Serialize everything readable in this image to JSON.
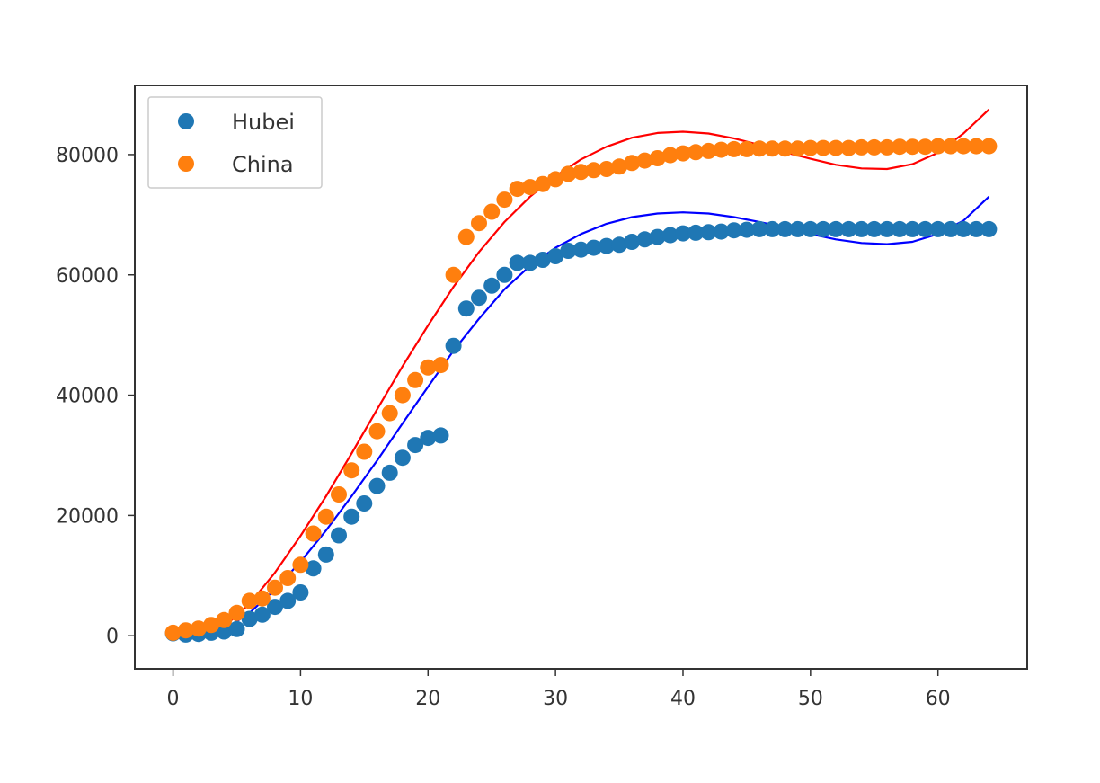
{
  "chart_data": {
    "type": "scatter",
    "title": "",
    "xlabel": "",
    "ylabel": "",
    "xlim": [
      -3,
      67
    ],
    "ylim": [
      -5500,
      91500
    ],
    "grid": false,
    "legend_position": "top-left",
    "x_ticks": [
      0,
      10,
      20,
      30,
      40,
      50,
      60
    ],
    "y_ticks": [
      0,
      20000,
      40000,
      60000,
      80000
    ],
    "series": [
      {
        "name": "Hubei",
        "kind": "points",
        "color": "#1f77b4",
        "x": [
          0,
          1,
          2,
          3,
          4,
          5,
          6,
          7,
          8,
          9,
          10,
          11,
          12,
          13,
          14,
          15,
          16,
          17,
          18,
          19,
          20,
          21,
          22,
          23,
          24,
          25,
          26,
          27,
          28,
          29,
          30,
          31,
          32,
          33,
          34,
          35,
          36,
          37,
          38,
          39,
          40,
          41,
          42,
          43,
          44,
          45,
          46,
          47,
          48,
          49,
          50,
          51,
          52,
          53,
          54,
          55,
          56,
          57,
          58,
          59,
          60,
          61,
          62,
          63,
          64
        ],
        "values": [
          400,
          200,
          300,
          500,
          700,
          1100,
          2800,
          3500,
          4800,
          5800,
          7200,
          11200,
          13500,
          16700,
          19800,
          22000,
          24900,
          27100,
          29600,
          31700,
          32900,
          33300,
          48200,
          54400,
          56200,
          58200,
          60000,
          62000,
          62000,
          62500,
          63100,
          64000,
          64200,
          64500,
          64800,
          65000,
          65500,
          65900,
          66300,
          66600,
          66900,
          67000,
          67100,
          67200,
          67400,
          67500,
          67600,
          67600,
          67600,
          67600,
          67600,
          67600,
          67600,
          67600,
          67600,
          67600,
          67600,
          67600,
          67600,
          67600,
          67600,
          67600,
          67600,
          67600,
          67600
        ]
      },
      {
        "name": "China",
        "kind": "points",
        "color": "#ff7f0e",
        "x": [
          0,
          1,
          2,
          3,
          4,
          5,
          6,
          7,
          8,
          9,
          10,
          11,
          12,
          13,
          14,
          15,
          16,
          17,
          18,
          19,
          20,
          21,
          22,
          23,
          24,
          25,
          26,
          27,
          28,
          29,
          30,
          31,
          32,
          33,
          34,
          35,
          36,
          37,
          38,
          39,
          40,
          41,
          42,
          43,
          44,
          45,
          46,
          47,
          48,
          49,
          50,
          51,
          52,
          53,
          54,
          55,
          56,
          57,
          58,
          59,
          60,
          61,
          62,
          63,
          64
        ],
        "values": [
          500,
          900,
          1200,
          1800,
          2600,
          3800,
          5800,
          6200,
          8000,
          9600,
          11800,
          17000,
          19800,
          23500,
          27500,
          30600,
          34000,
          37000,
          40000,
          42500,
          44600,
          45000,
          60000,
          66300,
          68600,
          70500,
          72500,
          74300,
          74600,
          75100,
          75900,
          76800,
          77100,
          77400,
          77600,
          78000,
          78600,
          79000,
          79400,
          79900,
          80200,
          80400,
          80600,
          80800,
          80900,
          80900,
          81000,
          81000,
          81000,
          81000,
          81100,
          81100,
          81100,
          81100,
          81200,
          81200,
          81200,
          81300,
          81300,
          81300,
          81400,
          81400,
          81400,
          81400,
          81400
        ]
      },
      {
        "kind": "fit-line",
        "color": "#0000ff",
        "x": [
          0,
          2,
          4,
          6,
          8,
          10,
          12,
          14,
          16,
          18,
          20,
          22,
          24,
          26,
          28,
          30,
          32,
          34,
          36,
          38,
          40,
          42,
          44,
          46,
          48,
          50,
          52,
          54,
          56,
          58,
          60,
          62,
          64
        ],
        "values": [
          0,
          -500,
          1000,
          3800,
          7700,
          12300,
          17500,
          23200,
          29100,
          35300,
          41400,
          47400,
          52700,
          57600,
          61500,
          64500,
          66800,
          68500,
          69600,
          70200,
          70400,
          70200,
          69600,
          68800,
          67900,
          66800,
          65900,
          65300,
          65100,
          65500,
          66800,
          69000,
          73000
        ]
      },
      {
        "kind": "fit-line",
        "color": "#ff0000",
        "x": [
          0,
          2,
          4,
          6,
          8,
          10,
          12,
          14,
          16,
          18,
          20,
          22,
          24,
          26,
          28,
          30,
          32,
          34,
          36,
          38,
          40,
          42,
          44,
          46,
          48,
          50,
          52,
          54,
          56,
          58,
          60,
          62,
          64
        ],
        "values": [
          0,
          -500,
          1500,
          5300,
          10500,
          16600,
          23200,
          30300,
          37600,
          44800,
          51600,
          58000,
          63800,
          68800,
          73000,
          76400,
          79200,
          81300,
          82800,
          83600,
          83800,
          83500,
          82700,
          81600,
          80400,
          79300,
          78300,
          77700,
          77600,
          78400,
          80300,
          83500,
          87500
        ]
      }
    ]
  }
}
